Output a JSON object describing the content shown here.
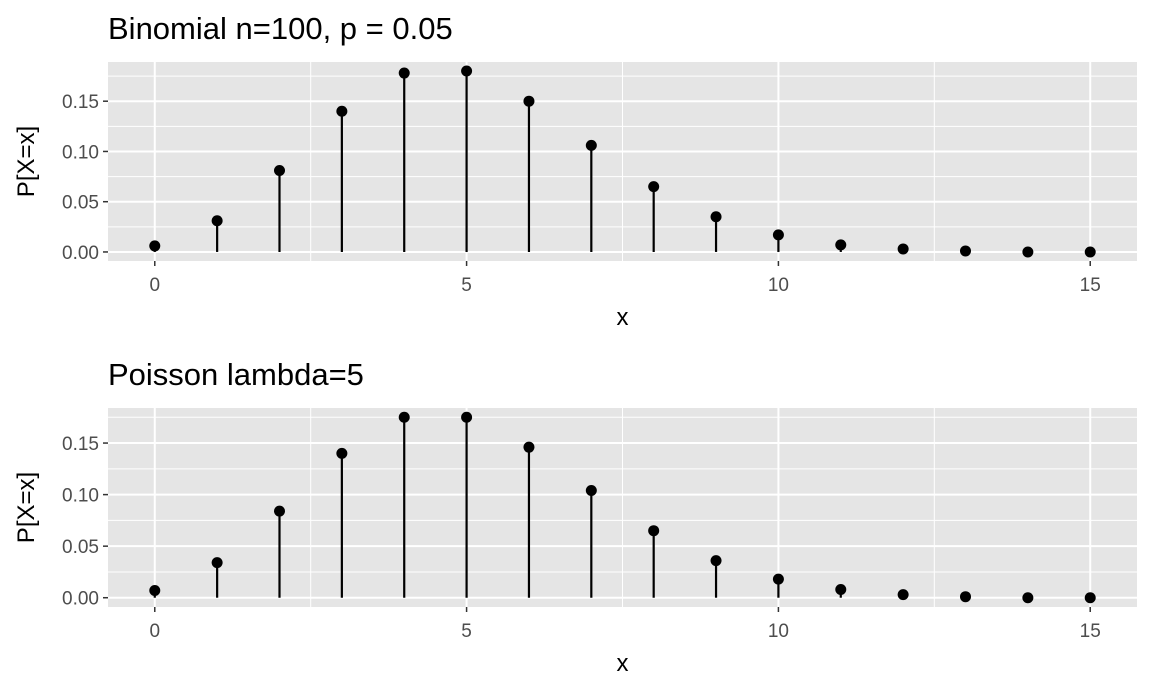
{
  "chart_data": [
    {
      "type": "lollipop",
      "title": "Binomial n=100, p = 0.05",
      "xlabel": "x",
      "ylabel": "P[X=x]",
      "xlim": [
        -0.75,
        15.75
      ],
      "ylim": [
        -0.009,
        0.189
      ],
      "x_ticks": [
        0,
        5,
        10,
        15
      ],
      "x_tick_labels": [
        "0",
        "5",
        "10",
        "15"
      ],
      "y_ticks": [
        0.0,
        0.05,
        0.1,
        0.15
      ],
      "y_tick_labels": [
        "0.00",
        "0.05",
        "0.10",
        "0.15"
      ],
      "grid": true,
      "panel_background": "#e5e5e5",
      "grid_color": "#ffffff",
      "mark_color": "#000000",
      "x": [
        0,
        1,
        2,
        3,
        4,
        5,
        6,
        7,
        8,
        9,
        10,
        11,
        12,
        13,
        14,
        15
      ],
      "y": [
        0.006,
        0.031,
        0.081,
        0.14,
        0.178,
        0.18,
        0.15,
        0.106,
        0.065,
        0.035,
        0.017,
        0.007,
        0.003,
        0.001,
        0.0,
        0.0
      ]
    },
    {
      "type": "lollipop",
      "title": "Poisson lambda=5",
      "xlabel": "x",
      "ylabel": "P[X=x]",
      "xlim": [
        -0.75,
        15.75
      ],
      "ylim": [
        -0.009,
        0.184
      ],
      "x_ticks": [
        0,
        5,
        10,
        15
      ],
      "x_tick_labels": [
        "0",
        "5",
        "10",
        "15"
      ],
      "y_ticks": [
        0.0,
        0.05,
        0.1,
        0.15
      ],
      "y_tick_labels": [
        "0.00",
        "0.05",
        "0.10",
        "0.15"
      ],
      "grid": true,
      "panel_background": "#e5e5e5",
      "grid_color": "#ffffff",
      "mark_color": "#000000",
      "x": [
        0,
        1,
        2,
        3,
        4,
        5,
        6,
        7,
        8,
        9,
        10,
        11,
        12,
        13,
        14,
        15
      ],
      "y": [
        0.007,
        0.034,
        0.084,
        0.14,
        0.175,
        0.175,
        0.146,
        0.104,
        0.065,
        0.036,
        0.018,
        0.008,
        0.003,
        0.001,
        0.0,
        0.0
      ]
    }
  ]
}
